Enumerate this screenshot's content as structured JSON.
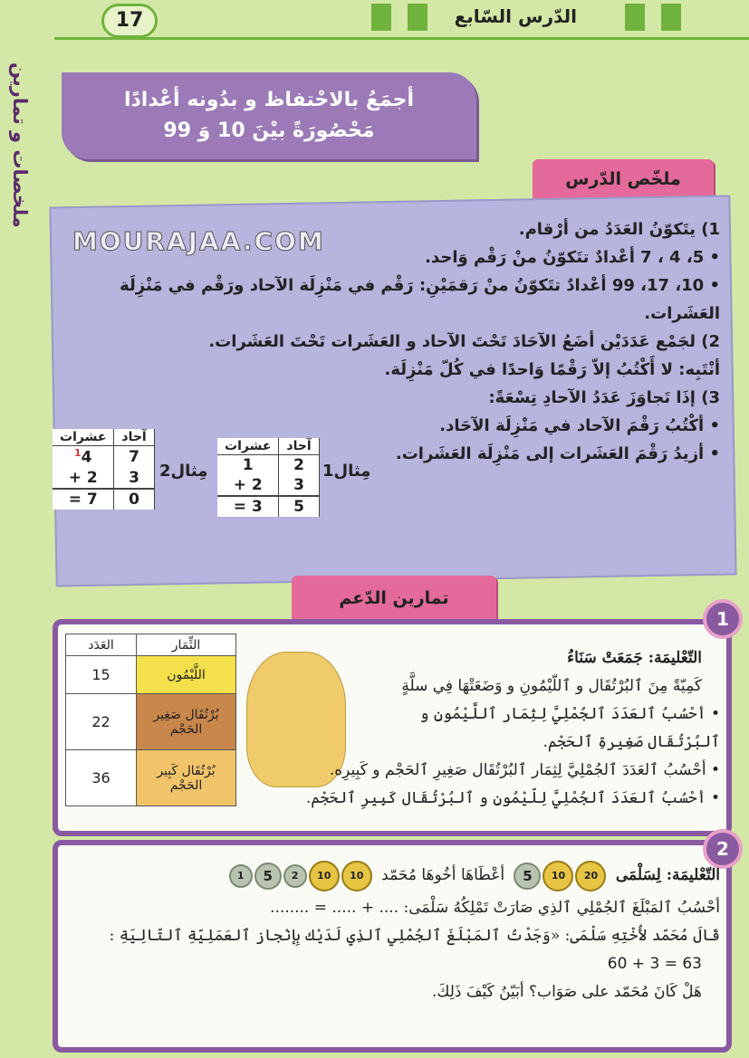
{
  "header": {
    "page_number": "17",
    "lesson": "الدّرس السّابع",
    "side_tab": "ملخصات و تمارين"
  },
  "banner": {
    "line1": "أجمَعُ بالاحْتفاظ و بدُونه أعْدادًا",
    "line2": "مَحْصُورَةً بيْنَ 10 وَ 99"
  },
  "summary": {
    "tab": "ملخّص الدّرس",
    "lines": [
      "1) يتَكوّنُ العَدَدُ من أرْقام.",
      "• 5، 4 ، 7 أعْدادٌ تتَكوّنُ منْ رَقْم وَاحد.",
      "• 10، 17، 99 أعْدادٌ تتَكوّنُ منْ رَقمَيْنِ: رَقْم في مَنْزِلَة الآحاد ورَقْم في مَنْزِلَة العَشَرات.",
      "2) لجَمْع عَدَدَيْن أضَعُ الآحَادَ تَحْتَ الآحاد و العَشَرات تَحْتَ العَشَرات.",
      "أنْتَبِه: لا أَكْتُبُ إلاّ رَقْمًا وَاحدًا في كُلّ مَنْزِلَة.",
      "3) إذَا تَجاوَزَ عَدَدُ الآحادِ تِسْعَةً:",
      "• أكْتُبُ رَقْمَ الآحاد في مَنْزِلَة الآحَاد.",
      "• أزيدُ رَقْمَ العَشَرات إلى مَنْزِلَة العَشَرات."
    ],
    "example1": {
      "label": "مِثال1",
      "head": [
        "آحاد",
        "عشرات"
      ],
      "row1": [
        "2",
        "1"
      ],
      "row2": [
        "3",
        "2"
      ],
      "plus": "+",
      "eq": "=",
      "result": [
        "5",
        "3"
      ]
    },
    "example2": {
      "label": "مِثال2",
      "head": [
        "آحاد",
        "عشرات"
      ],
      "carry": "1",
      "row1": [
        "7",
        "4"
      ],
      "row2": [
        "3",
        "2"
      ],
      "plus": "+",
      "eq": "=",
      "result": [
        "0",
        "7"
      ]
    },
    "watermark": "MOURAJAA.COM"
  },
  "support": {
    "tab": "تمارين الدّعم"
  },
  "exercise1": {
    "number": "1",
    "lines": [
      "التّعْليمَة: جَمَعَتْ سَنَاءُ",
      "كَمِيّةً مِنَ ٱلبُرْتُقَال و ٱللّيْمُونِ و وَضَعَتْهَا فِي سلَّةٍ",
      "• أحْسُبُ ٱلعَدَدَ ٱلجُمْلِيَّ لِثِمَار ٱللَّيْمُونِ و ٱلبُرْتُقَال صَغِيرةِ ٱلحَجْم.",
      "• أحْسُبُ ٱلعَدَدَ ٱلجُمْلِيَّ لِثِمَار ٱلبُرْتُقَال صَغِيرِ ٱلحَجْم و كَبِيرِه.",
      "• أحْسُبُ ٱلعَدَدَ ٱلجُمْلِيَّ لِلّيْمُونِ و ٱلبُرْتُقَال كَبِيرِ ٱلحَجْم."
    ],
    "table": {
      "headers": [
        "الثِّمَار",
        "العَدَد"
      ],
      "rows": [
        {
          "fruit": "اللَّيْمُون",
          "count": "15",
          "color": "#f3e04a"
        },
        {
          "fruit": "بُرْتُقَال صَغِير الحَجْم",
          "count": "22",
          "color": "#c8874a"
        },
        {
          "fruit": "بُرْتُقَال كَبِير الحَجْم",
          "count": "36",
          "color": "#f2c46a"
        }
      ]
    }
  },
  "exercise2": {
    "number": "2",
    "line1a": "التّعْليمَة: لِسَلْمَى",
    "line1b": "أعْطَاهَا أخُوهَا مُحَمّد",
    "coins_salma": [
      "1",
      "5",
      "2",
      "10",
      "10"
    ],
    "coins_mohamed": [
      "5",
      "10",
      "20"
    ],
    "lines": [
      "أحْسُبُ ٱلمَبْلَغَ ٱلجُمْلِي ٱلذِي صَارَتْ تَمْلِكُهُ سَلْمَى: .... + ..... = ........",
      "قَالَ مُحَمّد لأُخْتِهِ سَلْمَى: «وَجَدْتُ ٱلمَبْلَغَ ٱلجُمْلِي ٱلذِي لَدَيْك بِإنْجاز ٱلعَمَلِيّةِ ٱلتّالِيَةِ :",
      "63 = 3 + 60",
      "هَلْ كَانَ مُحَمّد على صَوَاب؟ أبَيّنُ كَيْفَ ذَلِكَ."
    ]
  }
}
